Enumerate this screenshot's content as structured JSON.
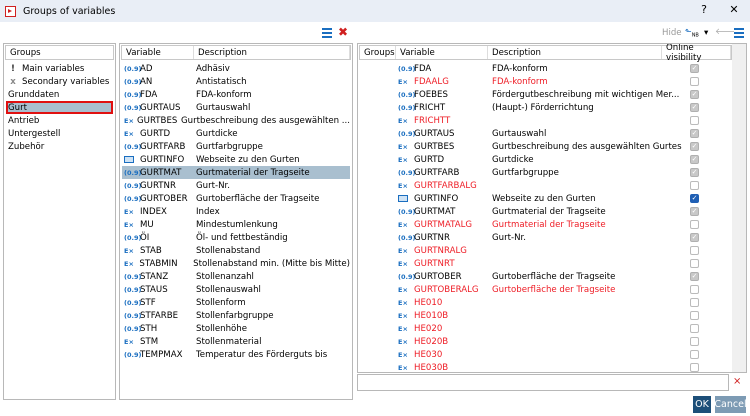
{
  "window": {
    "title": "Groups of variables",
    "help": "?",
    "close": "✕"
  },
  "toolbar_left": {
    "list_icon": "list-icon",
    "delete_icon": "delete-icon"
  },
  "toolbar_right": {
    "hide": "Hide",
    "nb": "NB",
    "dropdown": "▾",
    "back": "🡐"
  },
  "groups": {
    "header": "Groups",
    "items": [
      {
        "label": "Main variables",
        "icon": "!"
      },
      {
        "label": "Secondary variables",
        "icon": "x"
      },
      {
        "label": "Grunddaten"
      },
      {
        "label": "Gurt",
        "selected": true
      },
      {
        "label": "Antrieb"
      },
      {
        "label": "Untergestell"
      },
      {
        "label": "Zubehör"
      }
    ]
  },
  "variables": {
    "headers": [
      "Variable",
      "Description"
    ],
    "rows": [
      {
        "t": "num",
        "v": "AD",
        "d": "Adhäsiv"
      },
      {
        "t": "num",
        "v": "AN",
        "d": "Antistatisch"
      },
      {
        "t": "num",
        "v": "FDA",
        "d": "FDA-konform"
      },
      {
        "t": "num",
        "v": "GURTAUS",
        "d": "Gurtauswahl"
      },
      {
        "t": "expr",
        "v": "GURTBES",
        "d": "Gurtbeschreibung des ausgewählten ..."
      },
      {
        "t": "expr",
        "v": "GURTD",
        "d": "Gurtdicke"
      },
      {
        "t": "num",
        "v": "GURTFARB",
        "d": "Gurtfarbgruppe"
      },
      {
        "t": "web",
        "v": "GURTINFO",
        "d": "Webseite zu den Gurten"
      },
      {
        "t": "num",
        "v": "GURTMAT",
        "d": "Gurtmaterial der Tragseite",
        "sel": true
      },
      {
        "t": "num",
        "v": "GURTNR",
        "d": "Gurt-Nr."
      },
      {
        "t": "num",
        "v": "GURTOBER",
        "d": "Gurtoberfläche der Tragseite"
      },
      {
        "t": "expr",
        "v": "INDEX",
        "d": "Index"
      },
      {
        "t": "expr",
        "v": "MU",
        "d": "Mindestumlenkung"
      },
      {
        "t": "num",
        "v": "ÖI",
        "d": "Öl- und fettbeständig"
      },
      {
        "t": "expr",
        "v": "STAB",
        "d": "Stollenabstand"
      },
      {
        "t": "expr",
        "v": "STABMIN",
        "d": "Stollenabstand min. (Mitte bis Mitte)"
      },
      {
        "t": "num",
        "v": "STANZ",
        "d": "Stollenanzahl"
      },
      {
        "t": "num",
        "v": "STAUS",
        "d": "Stollenauswahl"
      },
      {
        "t": "num",
        "v": "STF",
        "d": "Stollenform"
      },
      {
        "t": "num",
        "v": "STFARBE",
        "d": "Stollenfarbgruppe"
      },
      {
        "t": "num",
        "v": "STH",
        "d": "Stollenhöhe"
      },
      {
        "t": "expr",
        "v": "STM",
        "d": "Stollenmaterial"
      },
      {
        "t": "num",
        "v": "TEMPMAX",
        "d": "Temperatur des Förderguts bis"
      }
    ]
  },
  "assigned": {
    "headers": [
      "Groups",
      "Variable",
      "Description",
      "Online visibility"
    ],
    "rows": [
      {
        "t": "num",
        "v": "FDA",
        "d": "FDA-konform",
        "c": "g"
      },
      {
        "t": "expr",
        "v": "FDAALG",
        "d": "FDA-konform",
        "red": true,
        "c": ""
      },
      {
        "t": "num",
        "v": "FOEBES",
        "d": "Fördergutbeschreibung mit wichtigen Mer...",
        "c": "g"
      },
      {
        "t": "num",
        "v": "FRICHT",
        "d": "(Haupt-) Förderrichtung",
        "c": "g"
      },
      {
        "t": "expr",
        "v": "FRICHTT",
        "d": "",
        "red": true,
        "c": ""
      },
      {
        "t": "num",
        "v": "GURTAUS",
        "d": "Gurtauswahl",
        "c": "g"
      },
      {
        "t": "expr",
        "v": "GURTBES",
        "d": "Gurtbeschreibung des ausgewählten Gurtes",
        "c": "g"
      },
      {
        "t": "expr",
        "v": "GURTD",
        "d": "Gurtdicke",
        "c": "g"
      },
      {
        "t": "num",
        "v": "GURTFARB",
        "d": "Gurtfarbgruppe",
        "c": "g"
      },
      {
        "t": "expr",
        "v": "GURTFARBALG",
        "d": "",
        "red": true,
        "c": ""
      },
      {
        "t": "web",
        "v": "GURTINFO",
        "d": "Webseite zu den Gurten",
        "c": "b"
      },
      {
        "t": "num",
        "v": "GURTMAT",
        "d": "Gurtmaterial der Tragseite",
        "c": "g"
      },
      {
        "t": "expr",
        "v": "GURTMATALG",
        "d": "Gurtmaterial der Tragseite",
        "red": true,
        "c": ""
      },
      {
        "t": "num",
        "v": "GURTNR",
        "d": "Gurt-Nr.",
        "c": "g"
      },
      {
        "t": "expr",
        "v": "GURTNRALG",
        "d": "",
        "red": true,
        "c": ""
      },
      {
        "t": "expr",
        "v": "GURTNRT",
        "d": "",
        "red": true,
        "c": ""
      },
      {
        "t": "num",
        "v": "GURTOBER",
        "d": "Gurtoberfläche der Tragseite",
        "c": "g"
      },
      {
        "t": "expr",
        "v": "GURTOBERALG",
        "d": "Gurtoberfläche der Tragseite",
        "red": true,
        "c": ""
      },
      {
        "t": "expr",
        "v": "HE010",
        "d": "",
        "red": true,
        "c": ""
      },
      {
        "t": "expr",
        "v": "HE010B",
        "d": "",
        "red": true,
        "c": ""
      },
      {
        "t": "expr",
        "v": "HE020",
        "d": "",
        "red": true,
        "c": ""
      },
      {
        "t": "expr",
        "v": "HE020B",
        "d": "",
        "red": true,
        "c": ""
      },
      {
        "t": "expr",
        "v": "HE030",
        "d": "",
        "red": true,
        "c": ""
      },
      {
        "t": "expr",
        "v": "HE030B",
        "d": "",
        "red": true,
        "c": ""
      }
    ]
  },
  "filter": {
    "value": ""
  },
  "buttons": {
    "ok": "OK",
    "cancel": "Cancel"
  },
  "icon_glyphs": {
    "num": "(0.9)",
    "expr": "E×"
  }
}
